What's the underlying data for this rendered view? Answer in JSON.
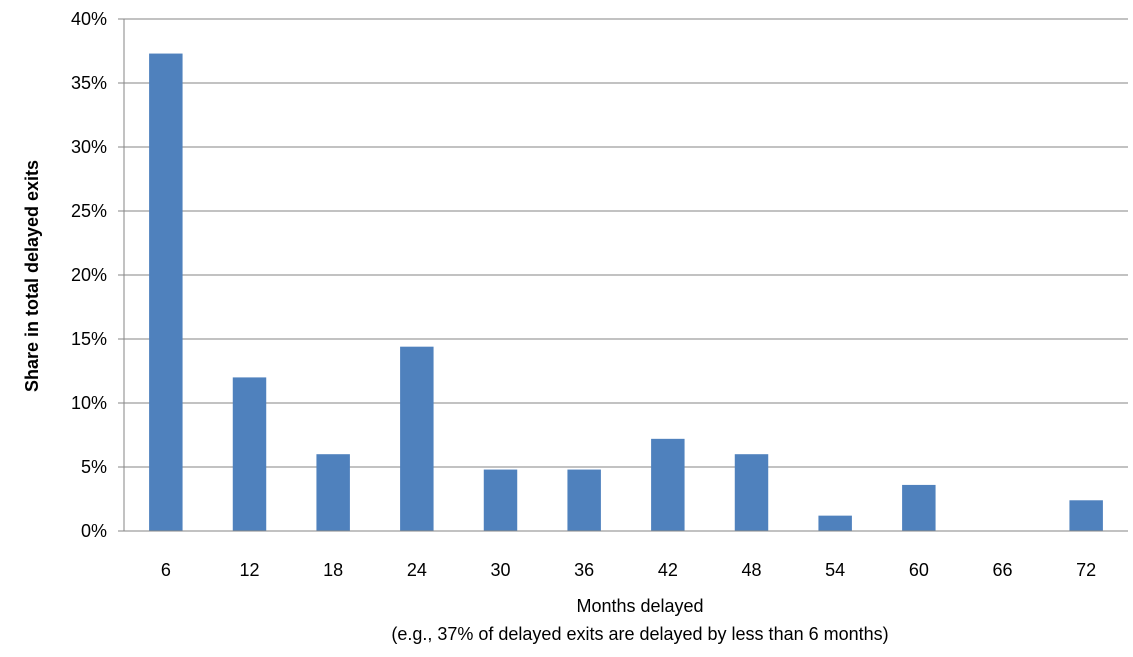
{
  "chart_data": {
    "type": "bar",
    "categories": [
      "6",
      "12",
      "18",
      "24",
      "30",
      "36",
      "42",
      "48",
      "54",
      "60",
      "66",
      "72"
    ],
    "values": [
      37.3,
      12.0,
      6.0,
      14.4,
      4.8,
      4.8,
      7.2,
      6.0,
      1.2,
      3.6,
      0.0,
      2.4
    ],
    "ylim": [
      0,
      40
    ],
    "yticks": [
      "0%",
      "5%",
      "10%",
      "15%",
      "20%",
      "25%",
      "30%",
      "35%",
      "40%"
    ],
    "ylabel": "Share in total delayed exits",
    "xlabel": "Months delayed",
    "xlabel_note": "(e.g., 37% of delayed exits are delayed by less than 6 months)",
    "bar_color": "#4f81bd",
    "grid_color": "#868686",
    "grid": true
  }
}
